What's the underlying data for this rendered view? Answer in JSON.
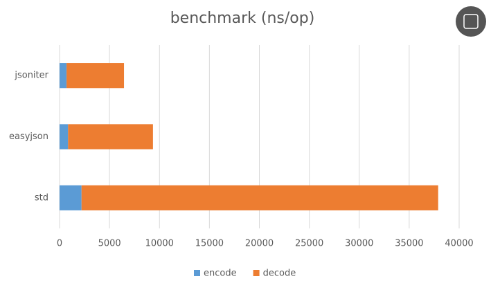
{
  "chart_data": {
    "type": "bar",
    "orientation": "horizontal",
    "stacked": true,
    "title": "benchmark (ns/op)",
    "categories": [
      "jsoniter",
      "easyjson",
      "std"
    ],
    "series": [
      {
        "name": "encode",
        "color": "#5b9bd5",
        "values": [
          700,
          850,
          2200
        ]
      },
      {
        "name": "decode",
        "color": "#ed7d31",
        "values": [
          5750,
          8500,
          35700
        ]
      }
    ],
    "xlim": [
      0,
      40000
    ],
    "xticks": [
      0,
      5000,
      10000,
      15000,
      20000,
      25000,
      30000,
      35000,
      40000
    ],
    "grid": true,
    "legend": "bottom"
  }
}
